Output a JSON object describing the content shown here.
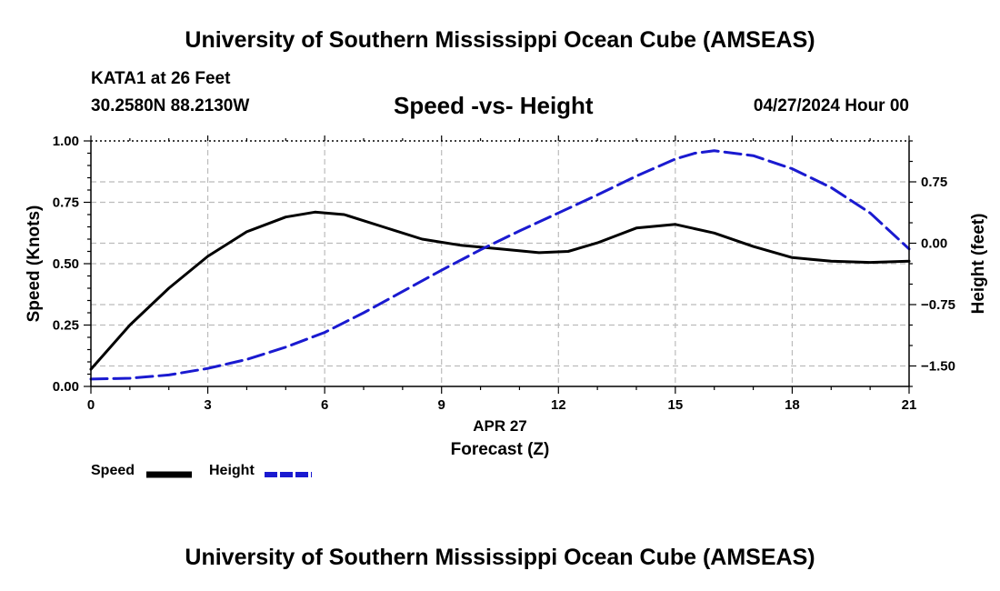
{
  "header": {
    "top_title": "University of Southern Mississippi Ocean Cube (AMSEAS)",
    "station": "KATA1 at 26 Feet",
    "coords": "30.2580N  88.2130W",
    "chart_title": "Speed -vs- Height",
    "date": "04/27/2024 Hour 00"
  },
  "footer": {
    "bottom_title": "University of Southern Mississippi Ocean Cube (AMSEAS)"
  },
  "legend": {
    "speed_label": "Speed",
    "height_label": "Height"
  },
  "colors": {
    "speed": "#000000",
    "height": "#1a1ad0",
    "grid": "#bbbbbb"
  },
  "chart_data": {
    "type": "line",
    "title": "Speed -vs- Height",
    "xlabel": "Forecast (Z)",
    "xlabel_date": "APR 27",
    "ylabel": "Speed (Knots)",
    "y2label": "Height (feet)",
    "xlim": [
      0,
      21
    ],
    "ylim": [
      0,
      1
    ],
    "y2lim": [
      -1.75,
      1.25
    ],
    "xticks": [
      0,
      3,
      6,
      9,
      12,
      15,
      18,
      21
    ],
    "yticks": [
      0,
      0.25,
      0.5,
      0.75,
      1.0
    ],
    "ytick_labels": [
      "0.00",
      "0.25",
      "0.50",
      "0.75",
      "1.00"
    ],
    "y2ticks": [
      -1.5,
      -0.75,
      0,
      0.75
    ],
    "y2tick_labels": [
      "−1.50",
      "−0.75",
      "0.00",
      "0.75"
    ],
    "grid": true,
    "legend_position": "bottom-left",
    "series": [
      {
        "name": "Speed",
        "axis": "left",
        "style": "solid",
        "x": [
          0,
          1,
          2,
          3,
          4,
          5,
          5.75,
          6.5,
          7.5,
          8.5,
          9.5,
          10.5,
          11.5,
          12.25,
          13,
          14,
          15,
          16,
          17,
          18,
          19,
          20,
          21
        ],
        "y": [
          0.07,
          0.25,
          0.4,
          0.53,
          0.63,
          0.69,
          0.71,
          0.7,
          0.65,
          0.6,
          0.575,
          0.56,
          0.545,
          0.55,
          0.585,
          0.645,
          0.66,
          0.625,
          0.57,
          0.525,
          0.51,
          0.505,
          0.51
        ]
      },
      {
        "name": "Height",
        "axis": "right",
        "style": "dashed",
        "x": [
          0,
          1,
          2,
          3,
          4,
          5,
          6,
          7,
          8,
          9,
          10,
          11,
          12,
          13,
          14,
          15,
          15.5,
          16,
          17,
          18,
          19,
          20,
          21
        ],
        "y": [
          -1.66,
          -1.65,
          -1.61,
          -1.53,
          -1.42,
          -1.27,
          -1.09,
          -0.85,
          -0.59,
          -0.33,
          -0.08,
          0.15,
          0.37,
          0.59,
          0.82,
          1.03,
          1.1,
          1.13,
          1.07,
          0.91,
          0.68,
          0.37,
          -0.07
        ]
      }
    ]
  }
}
